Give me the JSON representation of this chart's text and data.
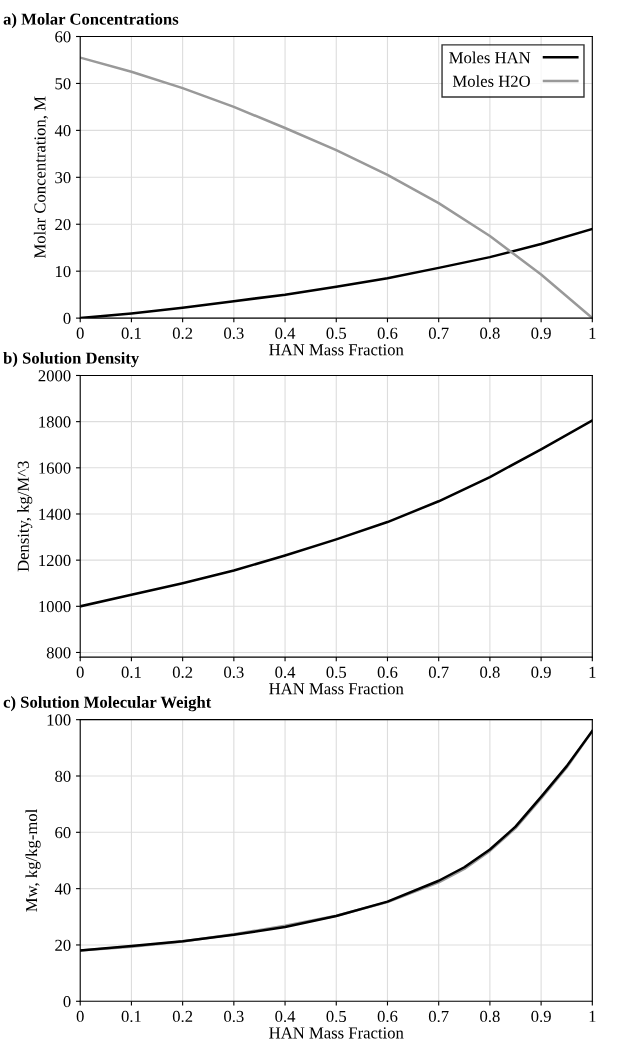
{
  "chart_data": [
    {
      "type": "line",
      "title": "a) Molar Concentrations",
      "xlabel": "HAN Mass Fraction",
      "ylabel": "Molar Concentration, M",
      "x": [
        0,
        0.1,
        0.2,
        0.3,
        0.4,
        0.5,
        0.6,
        0.7,
        0.8,
        0.9,
        1
      ],
      "series": [
        {
          "name": "Moles HAN",
          "color": "#000000",
          "values": [
            0,
            1,
            2.2,
            3.6,
            5,
            6.7,
            8.5,
            10.7,
            13,
            15.8,
            19
          ]
        },
        {
          "name": "Moles H2O",
          "color": "#999999",
          "values": [
            55.5,
            52.5,
            49,
            45,
            40.5,
            35.8,
            30.5,
            24.5,
            17.5,
            9.3,
            0
          ]
        }
      ],
      "xlim": [
        0,
        1
      ],
      "xticks": [
        0,
        0.1,
        0.2,
        0.3,
        0.4,
        0.5,
        0.6,
        0.7,
        0.8,
        0.9,
        1
      ],
      "ylim": [
        0,
        60
      ],
      "yticks": [
        0,
        10,
        20,
        30,
        40,
        50,
        60
      ],
      "grid": true,
      "legend": "top right"
    },
    {
      "type": "line",
      "title": "b) Solution Density",
      "xlabel": "HAN Mass Fraction",
      "ylabel": "Density, kg/M^3",
      "x": [
        0,
        0.1,
        0.2,
        0.3,
        0.4,
        0.5,
        0.6,
        0.7,
        0.8,
        0.9,
        1
      ],
      "series": [
        {
          "color": "#000000",
          "values": [
            1000,
            1050,
            1100,
            1155,
            1220,
            1290,
            1365,
            1455,
            1560,
            1680,
            1805
          ]
        }
      ],
      "xlim": [
        0,
        1
      ],
      "xticks": [
        0,
        0.1,
        0.2,
        0.3,
        0.4,
        0.5,
        0.6,
        0.7,
        0.8,
        0.9,
        1
      ],
      "ylim": [
        780,
        2000
      ],
      "yticks": [
        800,
        1000,
        1200,
        1400,
        1600,
        1800,
        2000
      ],
      "grid": true
    },
    {
      "type": "line",
      "title": "c) Solution Molecular Weight",
      "xlabel": "HAN Mass Fraction",
      "ylabel": "Mw, kg/kg-mol",
      "x": [
        0,
        0.1,
        0.2,
        0.3,
        0.4,
        0.5,
        0.6,
        0.7,
        0.75,
        0.8,
        0.85,
        0.9,
        0.95,
        1
      ],
      "series": [
        {
          "color": "#999999",
          "values": [
            18,
            19.4,
            21.2,
            23.8,
            26.8,
            30.4,
            35.2,
            42.2,
            47,
            53.4,
            61.5,
            72,
            83,
            96
          ]
        },
        {
          "color": "#000000",
          "values": [
            18,
            19.6,
            21.3,
            23.6,
            26.4,
            30.3,
            35.4,
            42.8,
            47.6,
            53.9,
            62,
            72.6,
            83.5,
            96
          ]
        }
      ],
      "xlim": [
        0,
        1
      ],
      "xticks": [
        0,
        0.1,
        0.2,
        0.3,
        0.4,
        0.5,
        0.6,
        0.7,
        0.8,
        0.9,
        1
      ],
      "ylim": [
        0,
        100
      ],
      "yticks": [
        0,
        20,
        40,
        60,
        80,
        100
      ],
      "grid": true
    }
  ]
}
